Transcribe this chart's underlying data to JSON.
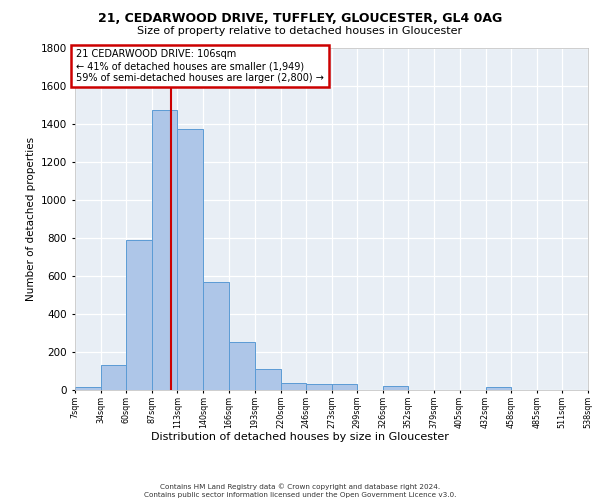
{
  "title1": "21, CEDARWOOD DRIVE, TUFFLEY, GLOUCESTER, GL4 0AG",
  "title2": "Size of property relative to detached houses in Gloucester",
  "xlabel": "Distribution of detached houses by size in Gloucester",
  "ylabel": "Number of detached properties",
  "bin_edges": [
    7,
    34,
    60,
    87,
    113,
    140,
    166,
    193,
    220,
    246,
    273,
    299,
    326,
    352,
    379,
    405,
    432,
    458,
    485,
    511,
    538
  ],
  "bar_heights": [
    15,
    130,
    790,
    1470,
    1370,
    570,
    250,
    110,
    35,
    30,
    30,
    0,
    20,
    0,
    0,
    0,
    15,
    0,
    0,
    0
  ],
  "bar_color": "#aec6e8",
  "bar_edge_color": "#5b9bd5",
  "vline_x": 106,
  "vline_color": "#cc0000",
  "annotation_line1": "21 CEDARWOOD DRIVE: 106sqm",
  "annotation_line2": "← 41% of detached houses are smaller (1,949)",
  "annotation_line3": "59% of semi-detached houses are larger (2,800) →",
  "annotation_box_color": "#cc0000",
  "ylim": [
    0,
    1800
  ],
  "yticks": [
    0,
    200,
    400,
    600,
    800,
    1000,
    1200,
    1400,
    1600,
    1800
  ],
  "bg_color": "#e8eef5",
  "grid_color": "#ffffff",
  "footer1": "Contains HM Land Registry data © Crown copyright and database right 2024.",
  "footer2": "Contains public sector information licensed under the Open Government Licence v3.0."
}
